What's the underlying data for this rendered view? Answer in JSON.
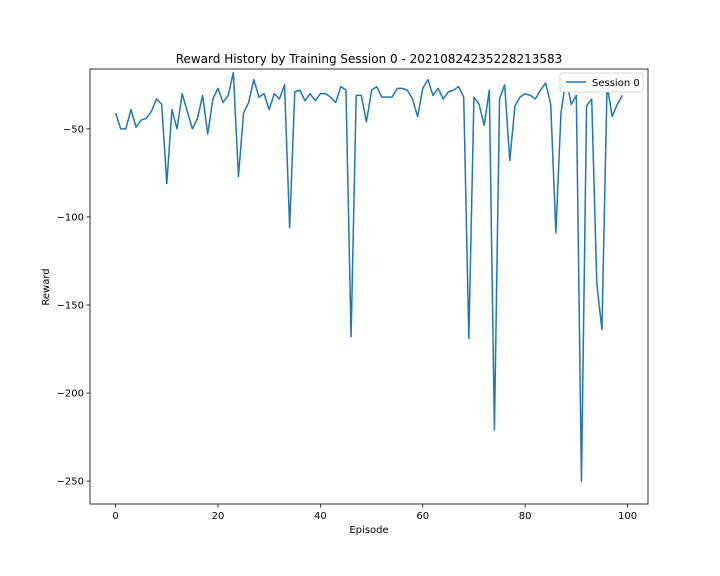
{
  "chart_data": {
    "type": "line",
    "title": "Reward History by Training Session 0 - 20210824235228213583",
    "xlabel": "Episode",
    "ylabel": "Reward",
    "xlim": [
      -5,
      104
    ],
    "ylim": [
      -263,
      -16
    ],
    "xticks": [
      0,
      20,
      40,
      60,
      80,
      100
    ],
    "yticks": [
      -250,
      -200,
      -150,
      -100,
      -50
    ],
    "grid": false,
    "legend_position": "top-right",
    "series": [
      {
        "name": "Session 0",
        "color": "#1f77b4",
        "x": [
          0,
          1,
          2,
          3,
          4,
          5,
          6,
          7,
          8,
          9,
          10,
          11,
          12,
          13,
          14,
          15,
          16,
          17,
          18,
          19,
          20,
          21,
          22,
          23,
          24,
          25,
          26,
          27,
          28,
          29,
          30,
          31,
          32,
          33,
          34,
          35,
          36,
          37,
          38,
          39,
          40,
          41,
          42,
          43,
          44,
          45,
          46,
          47,
          48,
          49,
          50,
          51,
          52,
          53,
          54,
          55,
          56,
          57,
          58,
          59,
          60,
          61,
          62,
          63,
          64,
          65,
          66,
          67,
          68,
          69,
          70,
          71,
          72,
          73,
          74,
          75,
          76,
          77,
          78,
          79,
          80,
          81,
          82,
          83,
          84,
          85,
          86,
          87,
          88,
          89,
          90,
          91,
          92,
          93,
          94,
          95,
          96,
          97,
          98,
          99
        ],
        "y": [
          -41,
          -50,
          -50,
          -39,
          -49,
          -45,
          -44,
          -40,
          -33,
          -36,
          -81,
          -39,
          -50,
          -30,
          -40,
          -50,
          -44,
          -31,
          -53,
          -33,
          -27,
          -35,
          -31,
          -18,
          -77,
          -41,
          -35,
          -22,
          -32,
          -30,
          -39,
          -30,
          -33,
          -25,
          -106,
          -29,
          -28,
          -34,
          -30,
          -34,
          -30,
          -30,
          -32,
          -35,
          -26,
          -28,
          -168,
          -31,
          -31,
          -46,
          -28,
          -26,
          -32,
          -32,
          -32,
          -27,
          -27,
          -28,
          -33,
          -43,
          -27,
          -22,
          -31,
          -27,
          -33,
          -29,
          -28,
          -26,
          -32,
          -169,
          -32,
          -36,
          -48,
          -28,
          -221,
          -33,
          -25,
          -68,
          -37,
          -32,
          -30,
          -31,
          -33,
          -28,
          -24,
          -36,
          -109,
          -41,
          -21,
          -36,
          -31,
          -250,
          -37,
          -33,
          -138,
          -164,
          -25,
          -43,
          -36,
          -31
        ]
      }
    ]
  }
}
